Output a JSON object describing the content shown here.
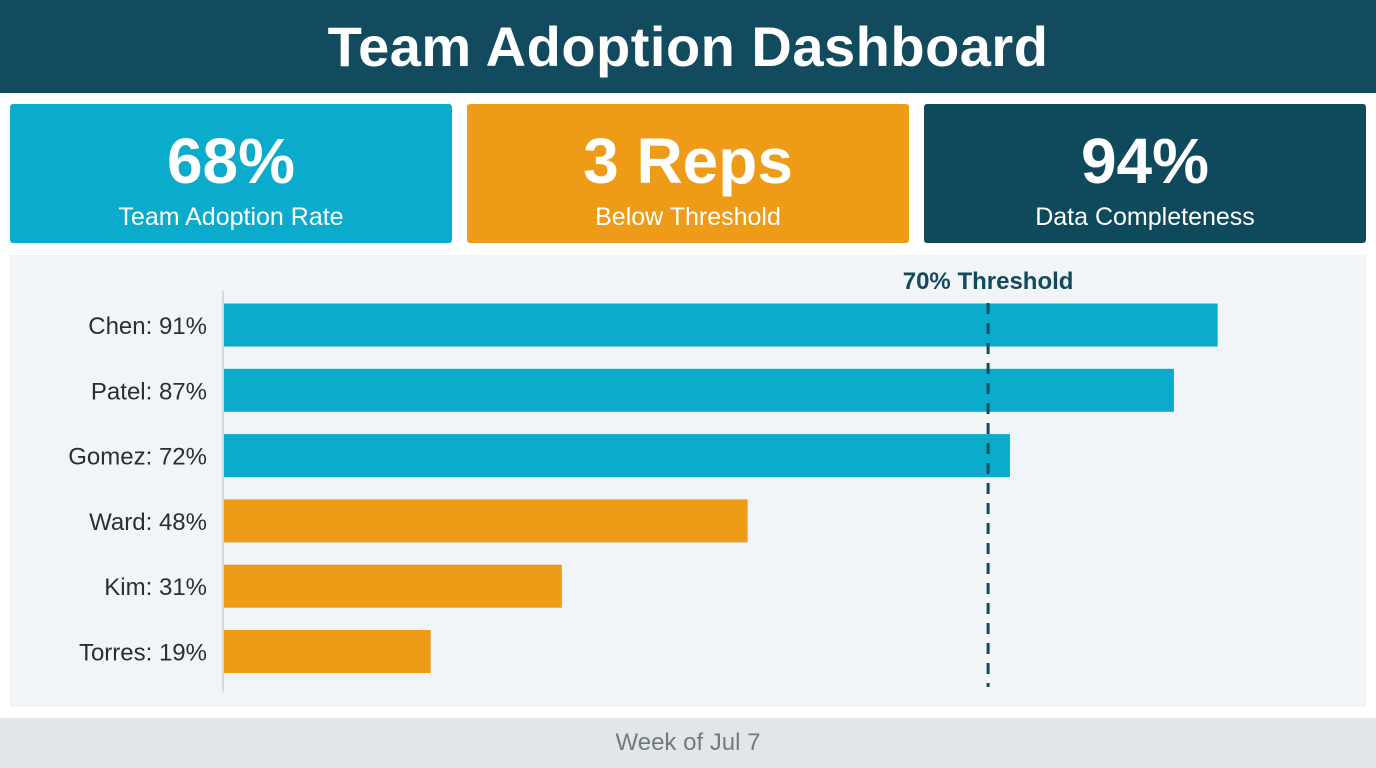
{
  "header": {
    "title": "Team Adoption Dashboard"
  },
  "kpis": [
    {
      "value": "68%",
      "label": "Team Adoption Rate",
      "color": "#0aabcb"
    },
    {
      "value": "3 Reps",
      "label": "Below Threshold",
      "color": "#ee9c18"
    },
    {
      "value": "94%",
      "label": "Data Completeness",
      "color": "#0f4a5c"
    }
  ],
  "chart_data": {
    "type": "bar",
    "orientation": "horizontal",
    "categories": [
      "Chen: 91%",
      "Patel: 87%",
      "Gomez: 72%",
      "Ward: 48%",
      "Kim: 31%",
      "Torres: 19%"
    ],
    "values": [
      91,
      87,
      72,
      48,
      31,
      19
    ],
    "xlim": [
      0,
      100
    ],
    "threshold": {
      "value": 70,
      "label": "70% Threshold"
    },
    "colors": {
      "above": "#0aabcb",
      "below": "#ee9c18",
      "threshold": "#124b5d"
    },
    "grid": false
  },
  "footer": {
    "text": "Week of Jul 7"
  }
}
